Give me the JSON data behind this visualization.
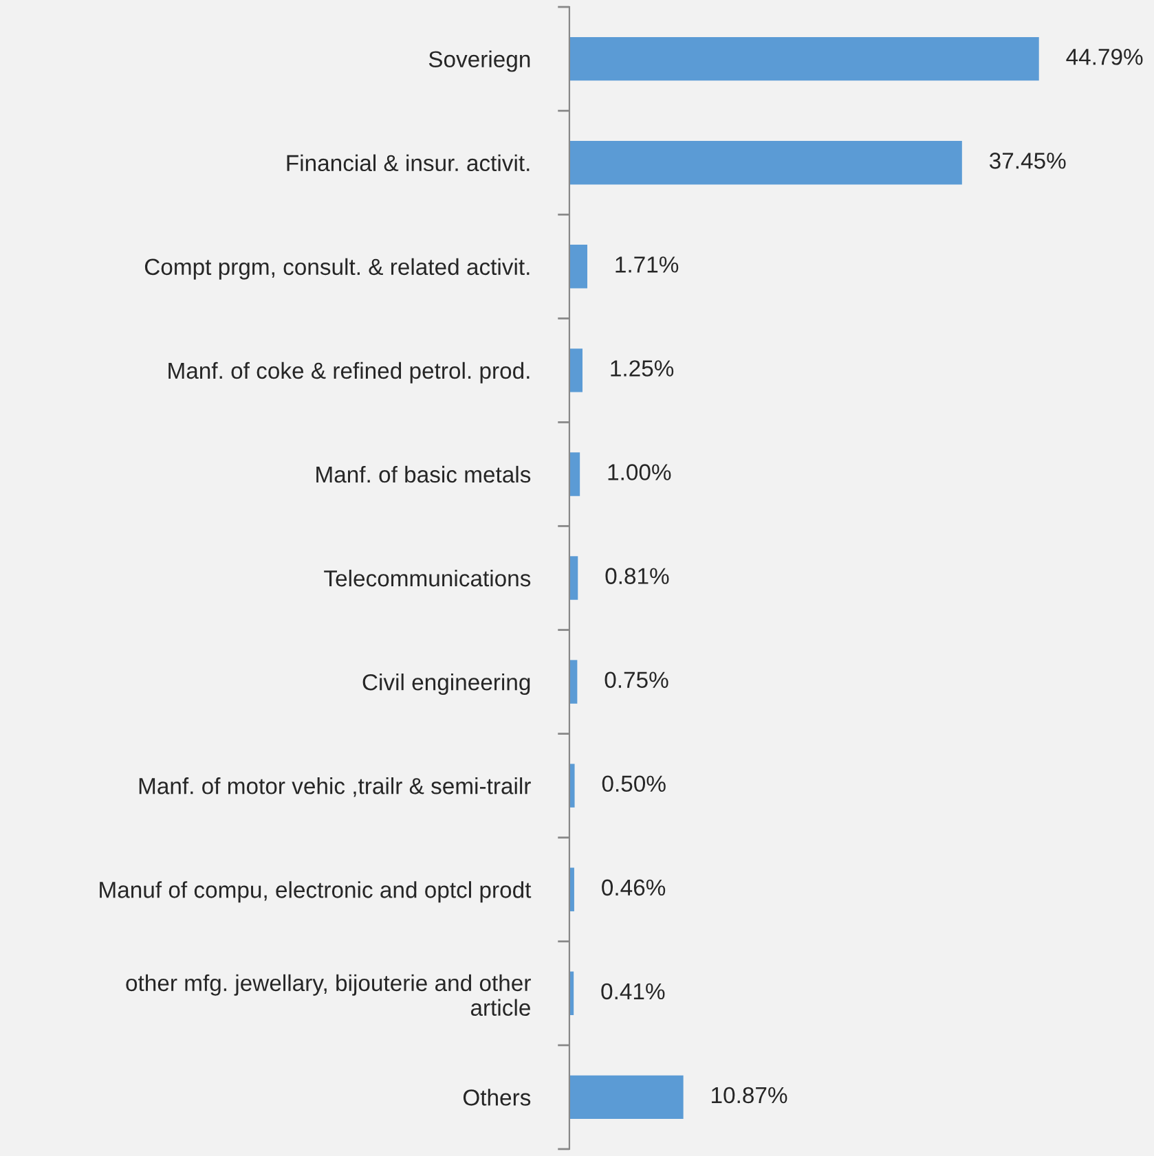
{
  "chart_data": {
    "type": "bar",
    "orientation": "horizontal",
    "categories": [
      "Soveriegn",
      "Financial & insur. activit.",
      "Compt prgm, consult. & related activit.",
      "Manf. of coke & refined petrol. prod.",
      "Manf. of basic metals",
      "Telecommunications",
      "Civil engineering",
      "Manf. of motor vehic ,trailr & semi-trailr",
      "Manuf of compu, electronic and optcl prodt",
      "other mfg. jewellary, bijouterie and other\narticle",
      "Others"
    ],
    "values": [
      44.79,
      37.45,
      1.71,
      1.25,
      1.0,
      0.81,
      0.75,
      0.5,
      0.46,
      0.41,
      10.87
    ],
    "value_labels": [
      "44.79%",
      "37.45%",
      "1.71%",
      "1.25%",
      "1.00%",
      "0.81%",
      "0.75%",
      "0.50%",
      "0.46%",
      "0.41%",
      "10.87%"
    ],
    "color": "#5b9bd5",
    "grid": false,
    "legend": false
  }
}
